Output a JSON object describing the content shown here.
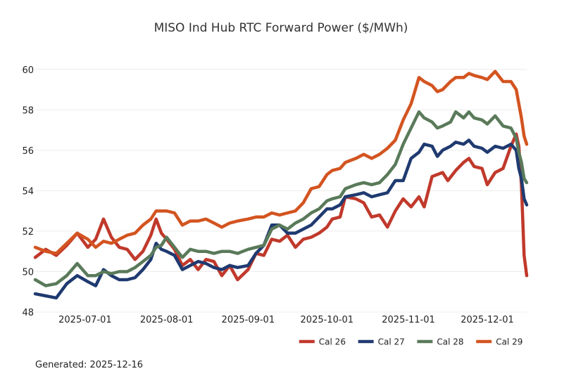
{
  "chart_data": {
    "type": "line",
    "title": "MISO Ind Hub RTC Forward Power ($/MWh)",
    "xlabel": "",
    "ylabel": "",
    "ylim": [
      48,
      61
    ],
    "yticks": [
      48,
      50,
      52,
      54,
      56,
      58,
      60
    ],
    "xlim": [
      "2025-06-12",
      "2025-12-16"
    ],
    "xticks": [
      "2025-07-01",
      "2025-08-01",
      "2025-09-01",
      "2025-10-01",
      "2025-11-01",
      "2025-12-01"
    ],
    "grid": true,
    "legend_position": "bottom-right",
    "series": [
      {
        "name": "Cal 26",
        "color": "#c0392b",
        "points": [
          [
            "2025-06-12",
            50.7
          ],
          [
            "2025-06-16",
            51.1
          ],
          [
            "2025-06-20",
            50.8
          ],
          [
            "2025-06-24",
            51.3
          ],
          [
            "2025-06-28",
            51.9
          ],
          [
            "2025-07-02",
            51.2
          ],
          [
            "2025-07-05",
            51.6
          ],
          [
            "2025-07-08",
            52.6
          ],
          [
            "2025-07-11",
            51.7
          ],
          [
            "2025-07-14",
            51.2
          ],
          [
            "2025-07-17",
            51.1
          ],
          [
            "2025-07-20",
            50.6
          ],
          [
            "2025-07-23",
            51.0
          ],
          [
            "2025-07-26",
            51.8
          ],
          [
            "2025-07-28",
            52.6
          ],
          [
            "2025-07-30",
            51.9
          ],
          [
            "2025-08-01",
            51.6
          ],
          [
            "2025-08-04",
            51.1
          ],
          [
            "2025-08-07",
            50.3
          ],
          [
            "2025-08-10",
            50.6
          ],
          [
            "2025-08-13",
            50.1
          ],
          [
            "2025-08-16",
            50.6
          ],
          [
            "2025-08-19",
            50.5
          ],
          [
            "2025-08-22",
            49.8
          ],
          [
            "2025-08-25",
            50.3
          ],
          [
            "2025-08-28",
            49.6
          ],
          [
            "2025-09-01",
            50.1
          ],
          [
            "2025-09-04",
            50.9
          ],
          [
            "2025-09-07",
            50.8
          ],
          [
            "2025-09-10",
            51.6
          ],
          [
            "2025-09-13",
            51.5
          ],
          [
            "2025-09-16",
            51.8
          ],
          [
            "2025-09-19",
            51.2
          ],
          [
            "2025-09-22",
            51.6
          ],
          [
            "2025-09-25",
            51.7
          ],
          [
            "2025-09-28",
            51.9
          ],
          [
            "2025-10-01",
            52.2
          ],
          [
            "2025-10-03",
            52.6
          ],
          [
            "2025-10-06",
            52.7
          ],
          [
            "2025-10-08",
            53.7
          ],
          [
            "2025-10-12",
            53.6
          ],
          [
            "2025-10-15",
            53.4
          ],
          [
            "2025-10-18",
            52.7
          ],
          [
            "2025-10-21",
            52.8
          ],
          [
            "2025-10-24",
            52.2
          ],
          [
            "2025-10-27",
            53.0
          ],
          [
            "2025-10-30",
            53.6
          ],
          [
            "2025-11-02",
            53.2
          ],
          [
            "2025-11-05",
            53.7
          ],
          [
            "2025-11-07",
            53.2
          ],
          [
            "2025-11-10",
            54.7
          ],
          [
            "2025-11-14",
            54.9
          ],
          [
            "2025-11-16",
            54.5
          ],
          [
            "2025-11-19",
            55.0
          ],
          [
            "2025-11-22",
            55.4
          ],
          [
            "2025-11-24",
            55.6
          ],
          [
            "2025-11-26",
            55.2
          ],
          [
            "2025-11-29",
            55.1
          ],
          [
            "2025-12-01",
            54.3
          ],
          [
            "2025-12-04",
            54.9
          ],
          [
            "2025-12-07",
            55.1
          ],
          [
            "2025-12-10",
            56.2
          ],
          [
            "2025-12-12",
            56.8
          ],
          [
            "2025-12-13",
            56.2
          ],
          [
            "2025-12-14",
            54.3
          ],
          [
            "2025-12-15",
            50.8
          ],
          [
            "2025-12-16",
            49.8
          ]
        ]
      },
      {
        "name": "Cal 27",
        "color": "#1f3a70",
        "points": [
          [
            "2025-06-12",
            48.9
          ],
          [
            "2025-06-16",
            48.8
          ],
          [
            "2025-06-20",
            48.7
          ],
          [
            "2025-06-24",
            49.4
          ],
          [
            "2025-06-28",
            49.8
          ],
          [
            "2025-07-02",
            49.5
          ],
          [
            "2025-07-05",
            49.3
          ],
          [
            "2025-07-08",
            50.1
          ],
          [
            "2025-07-11",
            49.8
          ],
          [
            "2025-07-14",
            49.6
          ],
          [
            "2025-07-17",
            49.6
          ],
          [
            "2025-07-20",
            49.7
          ],
          [
            "2025-07-23",
            50.1
          ],
          [
            "2025-07-26",
            50.6
          ],
          [
            "2025-07-28",
            51.4
          ],
          [
            "2025-07-30",
            51.1
          ],
          [
            "2025-08-01",
            51.0
          ],
          [
            "2025-08-04",
            50.8
          ],
          [
            "2025-08-07",
            50.1
          ],
          [
            "2025-08-10",
            50.3
          ],
          [
            "2025-08-13",
            50.5
          ],
          [
            "2025-08-16",
            50.4
          ],
          [
            "2025-08-19",
            50.2
          ],
          [
            "2025-08-22",
            50.1
          ],
          [
            "2025-08-25",
            50.3
          ],
          [
            "2025-08-28",
            50.2
          ],
          [
            "2025-09-01",
            50.3
          ],
          [
            "2025-09-04",
            50.9
          ],
          [
            "2025-09-07",
            51.3
          ],
          [
            "2025-09-10",
            52.3
          ],
          [
            "2025-09-13",
            52.3
          ],
          [
            "2025-09-16",
            51.9
          ],
          [
            "2025-09-19",
            51.9
          ],
          [
            "2025-09-22",
            52.1
          ],
          [
            "2025-09-25",
            52.3
          ],
          [
            "2025-09-28",
            52.7
          ],
          [
            "2025-10-01",
            53.1
          ],
          [
            "2025-10-03",
            53.1
          ],
          [
            "2025-10-06",
            53.3
          ],
          [
            "2025-10-08",
            53.7
          ],
          [
            "2025-10-12",
            53.8
          ],
          [
            "2025-10-15",
            53.9
          ],
          [
            "2025-10-18",
            53.7
          ],
          [
            "2025-10-21",
            53.8
          ],
          [
            "2025-10-24",
            53.9
          ],
          [
            "2025-10-27",
            54.5
          ],
          [
            "2025-10-30",
            54.5
          ],
          [
            "2025-11-02",
            55.6
          ],
          [
            "2025-11-05",
            55.9
          ],
          [
            "2025-11-07",
            56.3
          ],
          [
            "2025-11-10",
            56.2
          ],
          [
            "2025-11-12",
            55.7
          ],
          [
            "2025-11-14",
            56.0
          ],
          [
            "2025-11-17",
            56.2
          ],
          [
            "2025-11-19",
            56.4
          ],
          [
            "2025-11-22",
            56.3
          ],
          [
            "2025-11-24",
            56.5
          ],
          [
            "2025-11-26",
            56.2
          ],
          [
            "2025-11-29",
            56.1
          ],
          [
            "2025-12-01",
            55.9
          ],
          [
            "2025-12-04",
            56.2
          ],
          [
            "2025-12-07",
            56.1
          ],
          [
            "2025-12-10",
            56.3
          ],
          [
            "2025-12-12",
            56.0
          ],
          [
            "2025-12-13",
            55.1
          ],
          [
            "2025-12-14",
            54.6
          ],
          [
            "2025-12-15",
            53.6
          ],
          [
            "2025-12-16",
            53.3
          ]
        ]
      },
      {
        "name": "Cal 28",
        "color": "#5a7a5a",
        "points": [
          [
            "2025-06-12",
            49.6
          ],
          [
            "2025-06-16",
            49.3
          ],
          [
            "2025-06-20",
            49.4
          ],
          [
            "2025-06-24",
            49.8
          ],
          [
            "2025-06-28",
            50.4
          ],
          [
            "2025-07-02",
            49.8
          ],
          [
            "2025-07-05",
            49.8
          ],
          [
            "2025-07-08",
            50.0
          ],
          [
            "2025-07-11",
            49.9
          ],
          [
            "2025-07-14",
            50.0
          ],
          [
            "2025-07-17",
            50.0
          ],
          [
            "2025-07-20",
            50.2
          ],
          [
            "2025-07-23",
            50.5
          ],
          [
            "2025-07-26",
            50.8
          ],
          [
            "2025-07-28",
            51.2
          ],
          [
            "2025-07-30",
            51.3
          ],
          [
            "2025-08-01",
            51.7
          ],
          [
            "2025-08-04",
            51.2
          ],
          [
            "2025-08-07",
            50.7
          ],
          [
            "2025-08-10",
            51.1
          ],
          [
            "2025-08-13",
            51.0
          ],
          [
            "2025-08-16",
            51.0
          ],
          [
            "2025-08-19",
            50.9
          ],
          [
            "2025-08-22",
            51.0
          ],
          [
            "2025-08-25",
            51.0
          ],
          [
            "2025-08-28",
            50.9
          ],
          [
            "2025-09-01",
            51.1
          ],
          [
            "2025-09-04",
            51.2
          ],
          [
            "2025-09-07",
            51.3
          ],
          [
            "2025-09-10",
            52.1
          ],
          [
            "2025-09-13",
            52.3
          ],
          [
            "2025-09-16",
            52.1
          ],
          [
            "2025-09-19",
            52.4
          ],
          [
            "2025-09-22",
            52.6
          ],
          [
            "2025-09-25",
            52.9
          ],
          [
            "2025-09-28",
            53.1
          ],
          [
            "2025-10-01",
            53.5
          ],
          [
            "2025-10-03",
            53.6
          ],
          [
            "2025-10-06",
            53.7
          ],
          [
            "2025-10-08",
            54.1
          ],
          [
            "2025-10-12",
            54.3
          ],
          [
            "2025-10-15",
            54.4
          ],
          [
            "2025-10-18",
            54.3
          ],
          [
            "2025-10-21",
            54.4
          ],
          [
            "2025-10-24",
            54.8
          ],
          [
            "2025-10-27",
            55.3
          ],
          [
            "2025-10-30",
            56.3
          ],
          [
            "2025-11-02",
            57.1
          ],
          [
            "2025-11-05",
            57.9
          ],
          [
            "2025-11-07",
            57.6
          ],
          [
            "2025-11-10",
            57.4
          ],
          [
            "2025-11-12",
            57.1
          ],
          [
            "2025-11-14",
            57.2
          ],
          [
            "2025-11-17",
            57.4
          ],
          [
            "2025-11-19",
            57.9
          ],
          [
            "2025-11-22",
            57.6
          ],
          [
            "2025-11-24",
            57.9
          ],
          [
            "2025-11-26",
            57.6
          ],
          [
            "2025-11-29",
            57.5
          ],
          [
            "2025-12-01",
            57.3
          ],
          [
            "2025-12-04",
            57.7
          ],
          [
            "2025-12-07",
            57.2
          ],
          [
            "2025-12-10",
            57.1
          ],
          [
            "2025-12-12",
            56.6
          ],
          [
            "2025-12-13",
            55.9
          ],
          [
            "2025-12-14",
            55.4
          ],
          [
            "2025-12-15",
            54.6
          ],
          [
            "2025-12-16",
            54.4
          ]
        ]
      },
      {
        "name": "Cal 29",
        "color": "#d35420",
        "points": [
          [
            "2025-06-12",
            51.2
          ],
          [
            "2025-06-16",
            51.0
          ],
          [
            "2025-06-20",
            50.9
          ],
          [
            "2025-06-24",
            51.4
          ],
          [
            "2025-06-28",
            51.9
          ],
          [
            "2025-07-02",
            51.6
          ],
          [
            "2025-07-05",
            51.2
          ],
          [
            "2025-07-08",
            51.5
          ],
          [
            "2025-07-11",
            51.4
          ],
          [
            "2025-07-14",
            51.6
          ],
          [
            "2025-07-17",
            51.8
          ],
          [
            "2025-07-20",
            51.9
          ],
          [
            "2025-07-23",
            52.3
          ],
          [
            "2025-07-26",
            52.6
          ],
          [
            "2025-07-28",
            53.0
          ],
          [
            "2025-07-30",
            53.0
          ],
          [
            "2025-08-01",
            53.0
          ],
          [
            "2025-08-04",
            52.9
          ],
          [
            "2025-08-07",
            52.3
          ],
          [
            "2025-08-10",
            52.5
          ],
          [
            "2025-08-13",
            52.5
          ],
          [
            "2025-08-16",
            52.6
          ],
          [
            "2025-08-19",
            52.4
          ],
          [
            "2025-08-22",
            52.2
          ],
          [
            "2025-08-25",
            52.4
          ],
          [
            "2025-08-28",
            52.5
          ],
          [
            "2025-09-01",
            52.6
          ],
          [
            "2025-09-04",
            52.7
          ],
          [
            "2025-09-07",
            52.7
          ],
          [
            "2025-09-10",
            52.9
          ],
          [
            "2025-09-13",
            52.8
          ],
          [
            "2025-09-16",
            52.9
          ],
          [
            "2025-09-19",
            53.0
          ],
          [
            "2025-09-22",
            53.4
          ],
          [
            "2025-09-25",
            54.1
          ],
          [
            "2025-09-28",
            54.2
          ],
          [
            "2025-10-01",
            54.8
          ],
          [
            "2025-10-03",
            55.0
          ],
          [
            "2025-10-06",
            55.1
          ],
          [
            "2025-10-08",
            55.4
          ],
          [
            "2025-10-12",
            55.6
          ],
          [
            "2025-10-15",
            55.8
          ],
          [
            "2025-10-18",
            55.6
          ],
          [
            "2025-10-21",
            55.8
          ],
          [
            "2025-10-24",
            56.1
          ],
          [
            "2025-10-27",
            56.5
          ],
          [
            "2025-10-30",
            57.5
          ],
          [
            "2025-11-02",
            58.3
          ],
          [
            "2025-11-05",
            59.6
          ],
          [
            "2025-11-07",
            59.4
          ],
          [
            "2025-11-10",
            59.2
          ],
          [
            "2025-11-12",
            58.9
          ],
          [
            "2025-11-14",
            59.0
          ],
          [
            "2025-11-17",
            59.4
          ],
          [
            "2025-11-19",
            59.6
          ],
          [
            "2025-11-22",
            59.6
          ],
          [
            "2025-11-24",
            59.8
          ],
          [
            "2025-11-26",
            59.7
          ],
          [
            "2025-11-29",
            59.6
          ],
          [
            "2025-12-01",
            59.5
          ],
          [
            "2025-12-04",
            59.9
          ],
          [
            "2025-12-07",
            59.4
          ],
          [
            "2025-12-10",
            59.4
          ],
          [
            "2025-12-12",
            59.0
          ],
          [
            "2025-12-13",
            58.3
          ],
          [
            "2025-12-14",
            57.6
          ],
          [
            "2025-12-15",
            56.7
          ],
          [
            "2025-12-16",
            56.3
          ]
        ]
      }
    ]
  },
  "footer": {
    "generated": "Generated: 2025-12-16"
  }
}
